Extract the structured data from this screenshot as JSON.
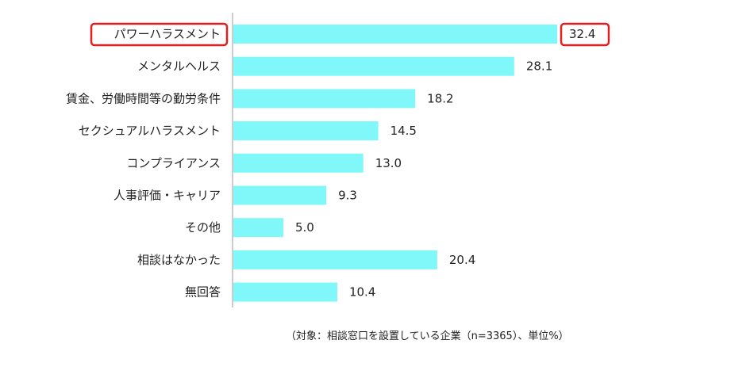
{
  "chart_data": {
    "type": "bar",
    "orientation": "horizontal",
    "categories": [
      "パワーハラスメント",
      "メンタルヘルス",
      "賃金、労働時間等の勤労条件",
      "セクシュアルハラスメント",
      "コンプライアンス",
      "人事評価・キャリア",
      "その他",
      "相談はなかった",
      "無回答"
    ],
    "values": [
      32.4,
      28.1,
      18.2,
      14.5,
      13.0,
      9.3,
      5.0,
      20.4,
      10.4
    ],
    "value_labels": [
      "32.4",
      "28.1",
      "18.2",
      "14.5",
      "13.0",
      "9.3",
      "5.0",
      "20.4",
      "10.4"
    ],
    "highlighted_index": 0,
    "xlim": [
      0,
      35
    ],
    "note": "（対象：相談窓口を設置している企業（n=3365）、単位%）",
    "colors": {
      "bar": "#80f8f9",
      "highlight_border": "#e02020",
      "axis": "#999999",
      "text": "#222222"
    }
  }
}
